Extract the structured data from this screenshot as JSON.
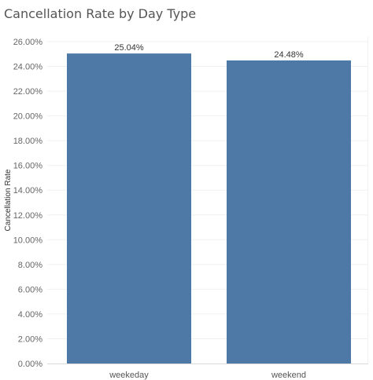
{
  "chart_data": {
    "type": "bar",
    "title": "Cancellation Rate by Day Type",
    "xlabel": "",
    "ylabel": "Cancellation Rate",
    "categories": [
      "weekeday",
      "weekend"
    ],
    "values": [
      25.04,
      24.48
    ],
    "data_labels": [
      "25.04%",
      "24.48%"
    ],
    "ylim": [
      0,
      26
    ],
    "y_ticks": [
      0,
      2,
      4,
      6,
      8,
      10,
      12,
      14,
      16,
      18,
      20,
      22,
      24,
      26
    ],
    "y_tick_labels": [
      "0.00%",
      "2.00%",
      "4.00%",
      "6.00%",
      "8.00%",
      "10.00%",
      "12.00%",
      "14.00%",
      "16.00%",
      "18.00%",
      "20.00%",
      "22.00%",
      "24.00%",
      "26.00%"
    ],
    "grid": true,
    "bar_color": "#4e79a7",
    "grid_color": "#f0f0f0",
    "axis_color": "#d9d9d9"
  }
}
